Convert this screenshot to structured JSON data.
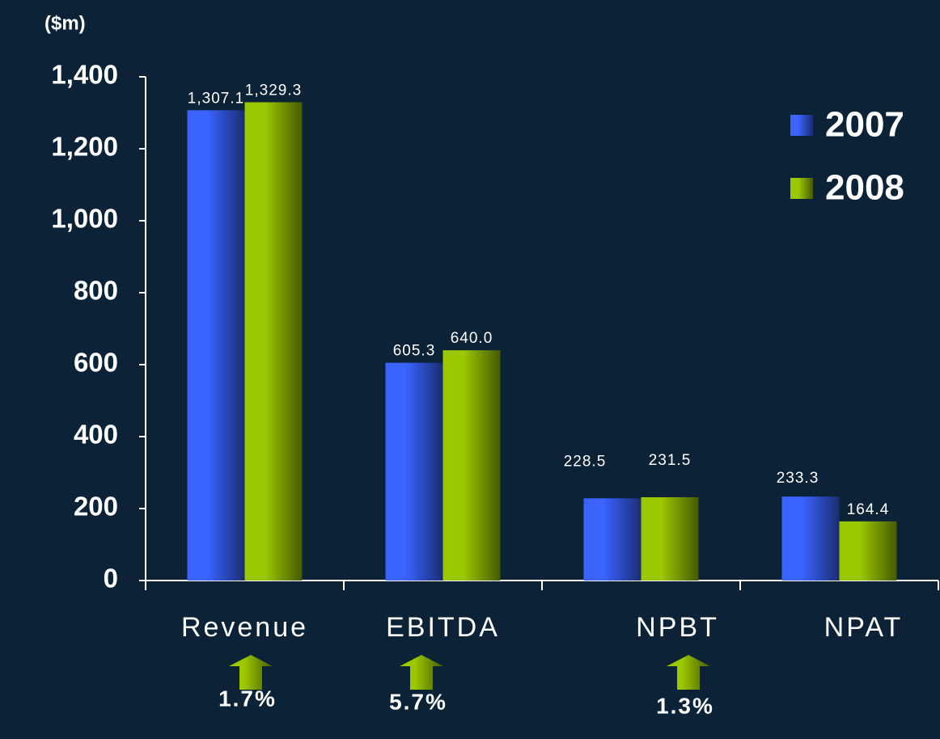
{
  "chart_data": {
    "type": "bar",
    "y_label": "($m)",
    "categories": [
      "Revenue",
      "EBITDA",
      "NPBT",
      "NPAT"
    ],
    "series": [
      {
        "name": "2007",
        "color": "#3a63ff",
        "values": [
          1307.1,
          605.3,
          228.5,
          233.3
        ],
        "value_labels": [
          "1,307.1",
          "605.3",
          "228.5",
          "233.3"
        ]
      },
      {
        "name": "2008",
        "color": "#9cc800",
        "values": [
          1329.3,
          640.0,
          231.5,
          164.4
        ],
        "value_labels": [
          "1,329.3",
          "640.0",
          "231.5",
          "164.4"
        ]
      }
    ],
    "ylim": [
      0,
      1400
    ],
    "yticks": [
      0,
      200,
      400,
      600,
      800,
      {
        "value": 1000,
        "label": "1,000"
      },
      {
        "value": 1200,
        "label": "1,200"
      },
      {
        "value": 1400,
        "label": "1,400"
      }
    ],
    "legend": "top-right",
    "annotations": [
      "1.7%",
      "5.7%",
      "1.3%"
    ]
  }
}
